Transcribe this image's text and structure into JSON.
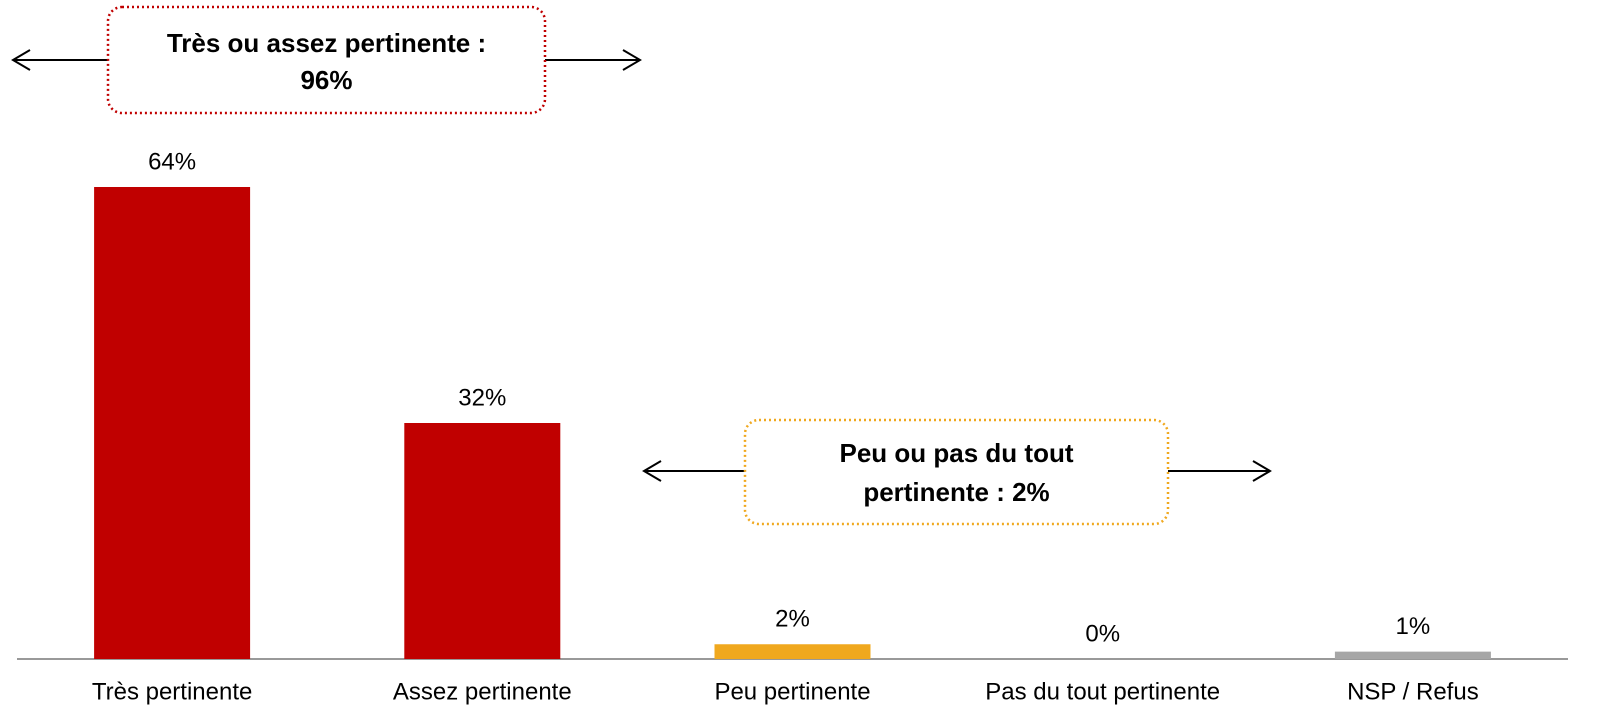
{
  "chart_data": {
    "type": "bar",
    "categories": [
      "Très pertinente",
      "Assez pertinente",
      "Peu pertinente",
      "Pas du tout pertinente",
      "NSP / Refus"
    ],
    "values": [
      64,
      32,
      2,
      0,
      1
    ],
    "value_labels": [
      "64%",
      "32%",
      "2%",
      "0%",
      "1%"
    ],
    "colors": [
      "#c00000",
      "#c00000",
      "#f0a81e",
      "#a6a6a6",
      "#a6a6a6"
    ],
    "annotations": [
      {
        "lines": [
          "Très ou assez pertinente :",
          "96%"
        ],
        "color": "#c00000"
      },
      {
        "lines": [
          "Peu ou pas du tout",
          "pertinente : 2%"
        ],
        "color": "#f0a81e"
      }
    ]
  }
}
